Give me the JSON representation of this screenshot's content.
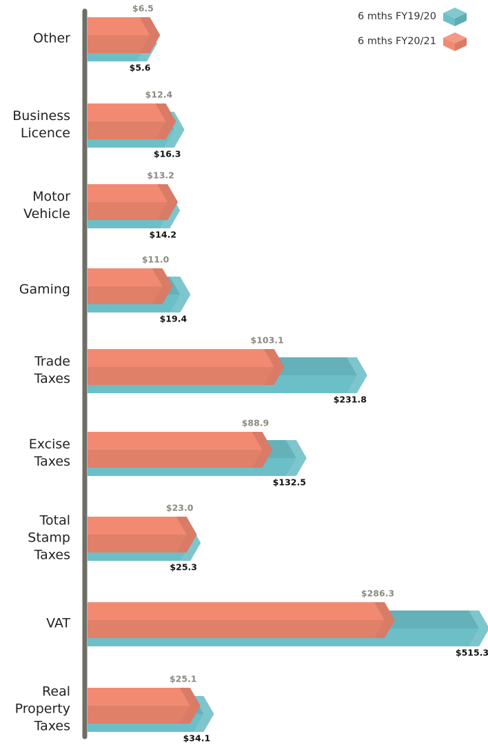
{
  "chart_data": {
    "type": "bar",
    "orientation": "horizontal",
    "categories": [
      "Other",
      "Business Licence",
      "Motor Vehicle",
      "Gaming",
      "Trade Taxes",
      "Excise Taxes",
      "Total Stamp Taxes",
      "VAT",
      "Real Property Taxes"
    ],
    "series": [
      {
        "name": "6 mths FY19/20",
        "color": "#6cbfc7",
        "values": [
          5.6,
          16.3,
          14.2,
          19.4,
          231.8,
          132.5,
          25.3,
          515.3,
          34.1
        ],
        "value_labels": [
          "$5.6",
          "$16.3",
          "$14.2",
          "$19.4",
          "$231.8",
          "$132.5",
          "$25.3",
          "$515.3",
          "$34.1"
        ]
      },
      {
        "name": "6 mths FY20/21",
        "color": "#f28a72",
        "values": [
          6.5,
          12.4,
          13.2,
          11.0,
          103.1,
          88.9,
          23.0,
          286.3,
          25.1
        ],
        "value_labels": [
          "$6.5",
          "$12.4",
          "$13.2",
          "$11.0",
          "$103.1",
          "$88.9",
          "$23.0",
          "$286.3",
          "$25.1"
        ]
      }
    ],
    "legend": "upper right"
  }
}
